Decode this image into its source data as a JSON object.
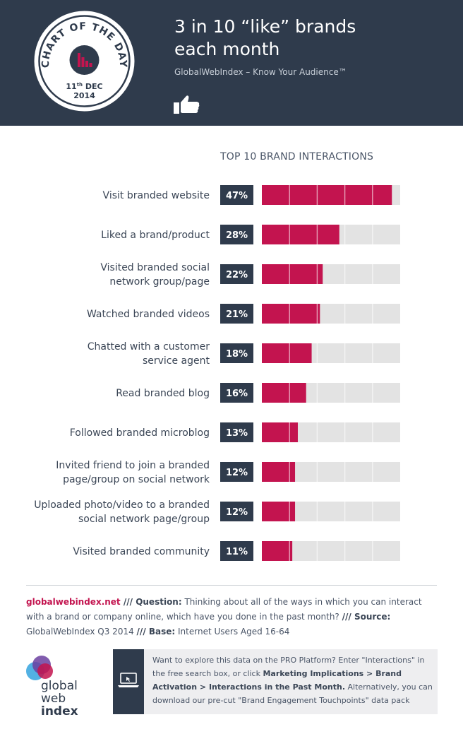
{
  "header": {
    "title_line1": "3 in 10 “like” brands",
    "title_line2": "each month",
    "subtitle": "GlobalWebIndex – Know Your Audience™",
    "badge_top_text": "CHART OF THE DAY",
    "badge_day": "11",
    "badge_day_suffix": "th",
    "badge_month": "DEC",
    "badge_year": "2014",
    "thumb_icon": "thumbs-up-icon"
  },
  "colors": {
    "header_bg": "#2f3b4c",
    "bar": "#c3144f",
    "track": "#e3e3e3",
    "label_box": "#2f3b4c",
    "accent": "#c3144f"
  },
  "chart_data": {
    "type": "bar",
    "title": "TOP 10 BRAND INTERACTIONS",
    "categories": [
      [
        "Visit branded website"
      ],
      [
        "Liked a brand/product"
      ],
      [
        "Visited branded social",
        "network group/page"
      ],
      [
        "Watched branded videos"
      ],
      [
        "Chatted with a customer",
        "service agent"
      ],
      [
        "Read branded blog"
      ],
      [
        "Followed branded microblog"
      ],
      [
        "Invited friend to join a branded",
        "page/group on social network"
      ],
      [
        "Uploaded photo/video to a branded",
        "social network page/group"
      ],
      [
        "Visited branded community"
      ]
    ],
    "values": [
      47,
      28,
      22,
      21,
      18,
      16,
      13,
      12,
      12,
      11
    ],
    "value_labels": [
      "47%",
      "28%",
      "22%",
      "21%",
      "18%",
      "16%",
      "13%",
      "12%",
      "12%",
      "11%"
    ],
    "unit": "%",
    "xlim": [
      0,
      50
    ],
    "grid_step": 10
  },
  "footer": {
    "site": "globalwebindex.net",
    "sep1": " /// ",
    "question_label": "Question:",
    "question_text": " Thinking about all of the ways in which you can interact with a brand or company online, which have you done in the past month? ",
    "sep2": " /// ",
    "source_label": "Source:",
    "source_text": " GlobalWebIndex Q3 2014 ",
    "sep3": " /// ",
    "base_label": "Base:",
    "base_text": " Internet Users Aged 16-64",
    "logo_line1": "global",
    "logo_line2": "web",
    "logo_line3": "index"
  },
  "promo": {
    "icon": "laptop-icon",
    "text1": "Want to explore this data on the PRO Platform? Enter \"Interactions\" in the free search box, or click ",
    "bold1": "Marketing Implications > Brand Activation > Interactions in the Past Month.",
    "text2": " Alternatively, you can download our pre-cut \"Brand Engagement Touchpoints\" data pack"
  }
}
